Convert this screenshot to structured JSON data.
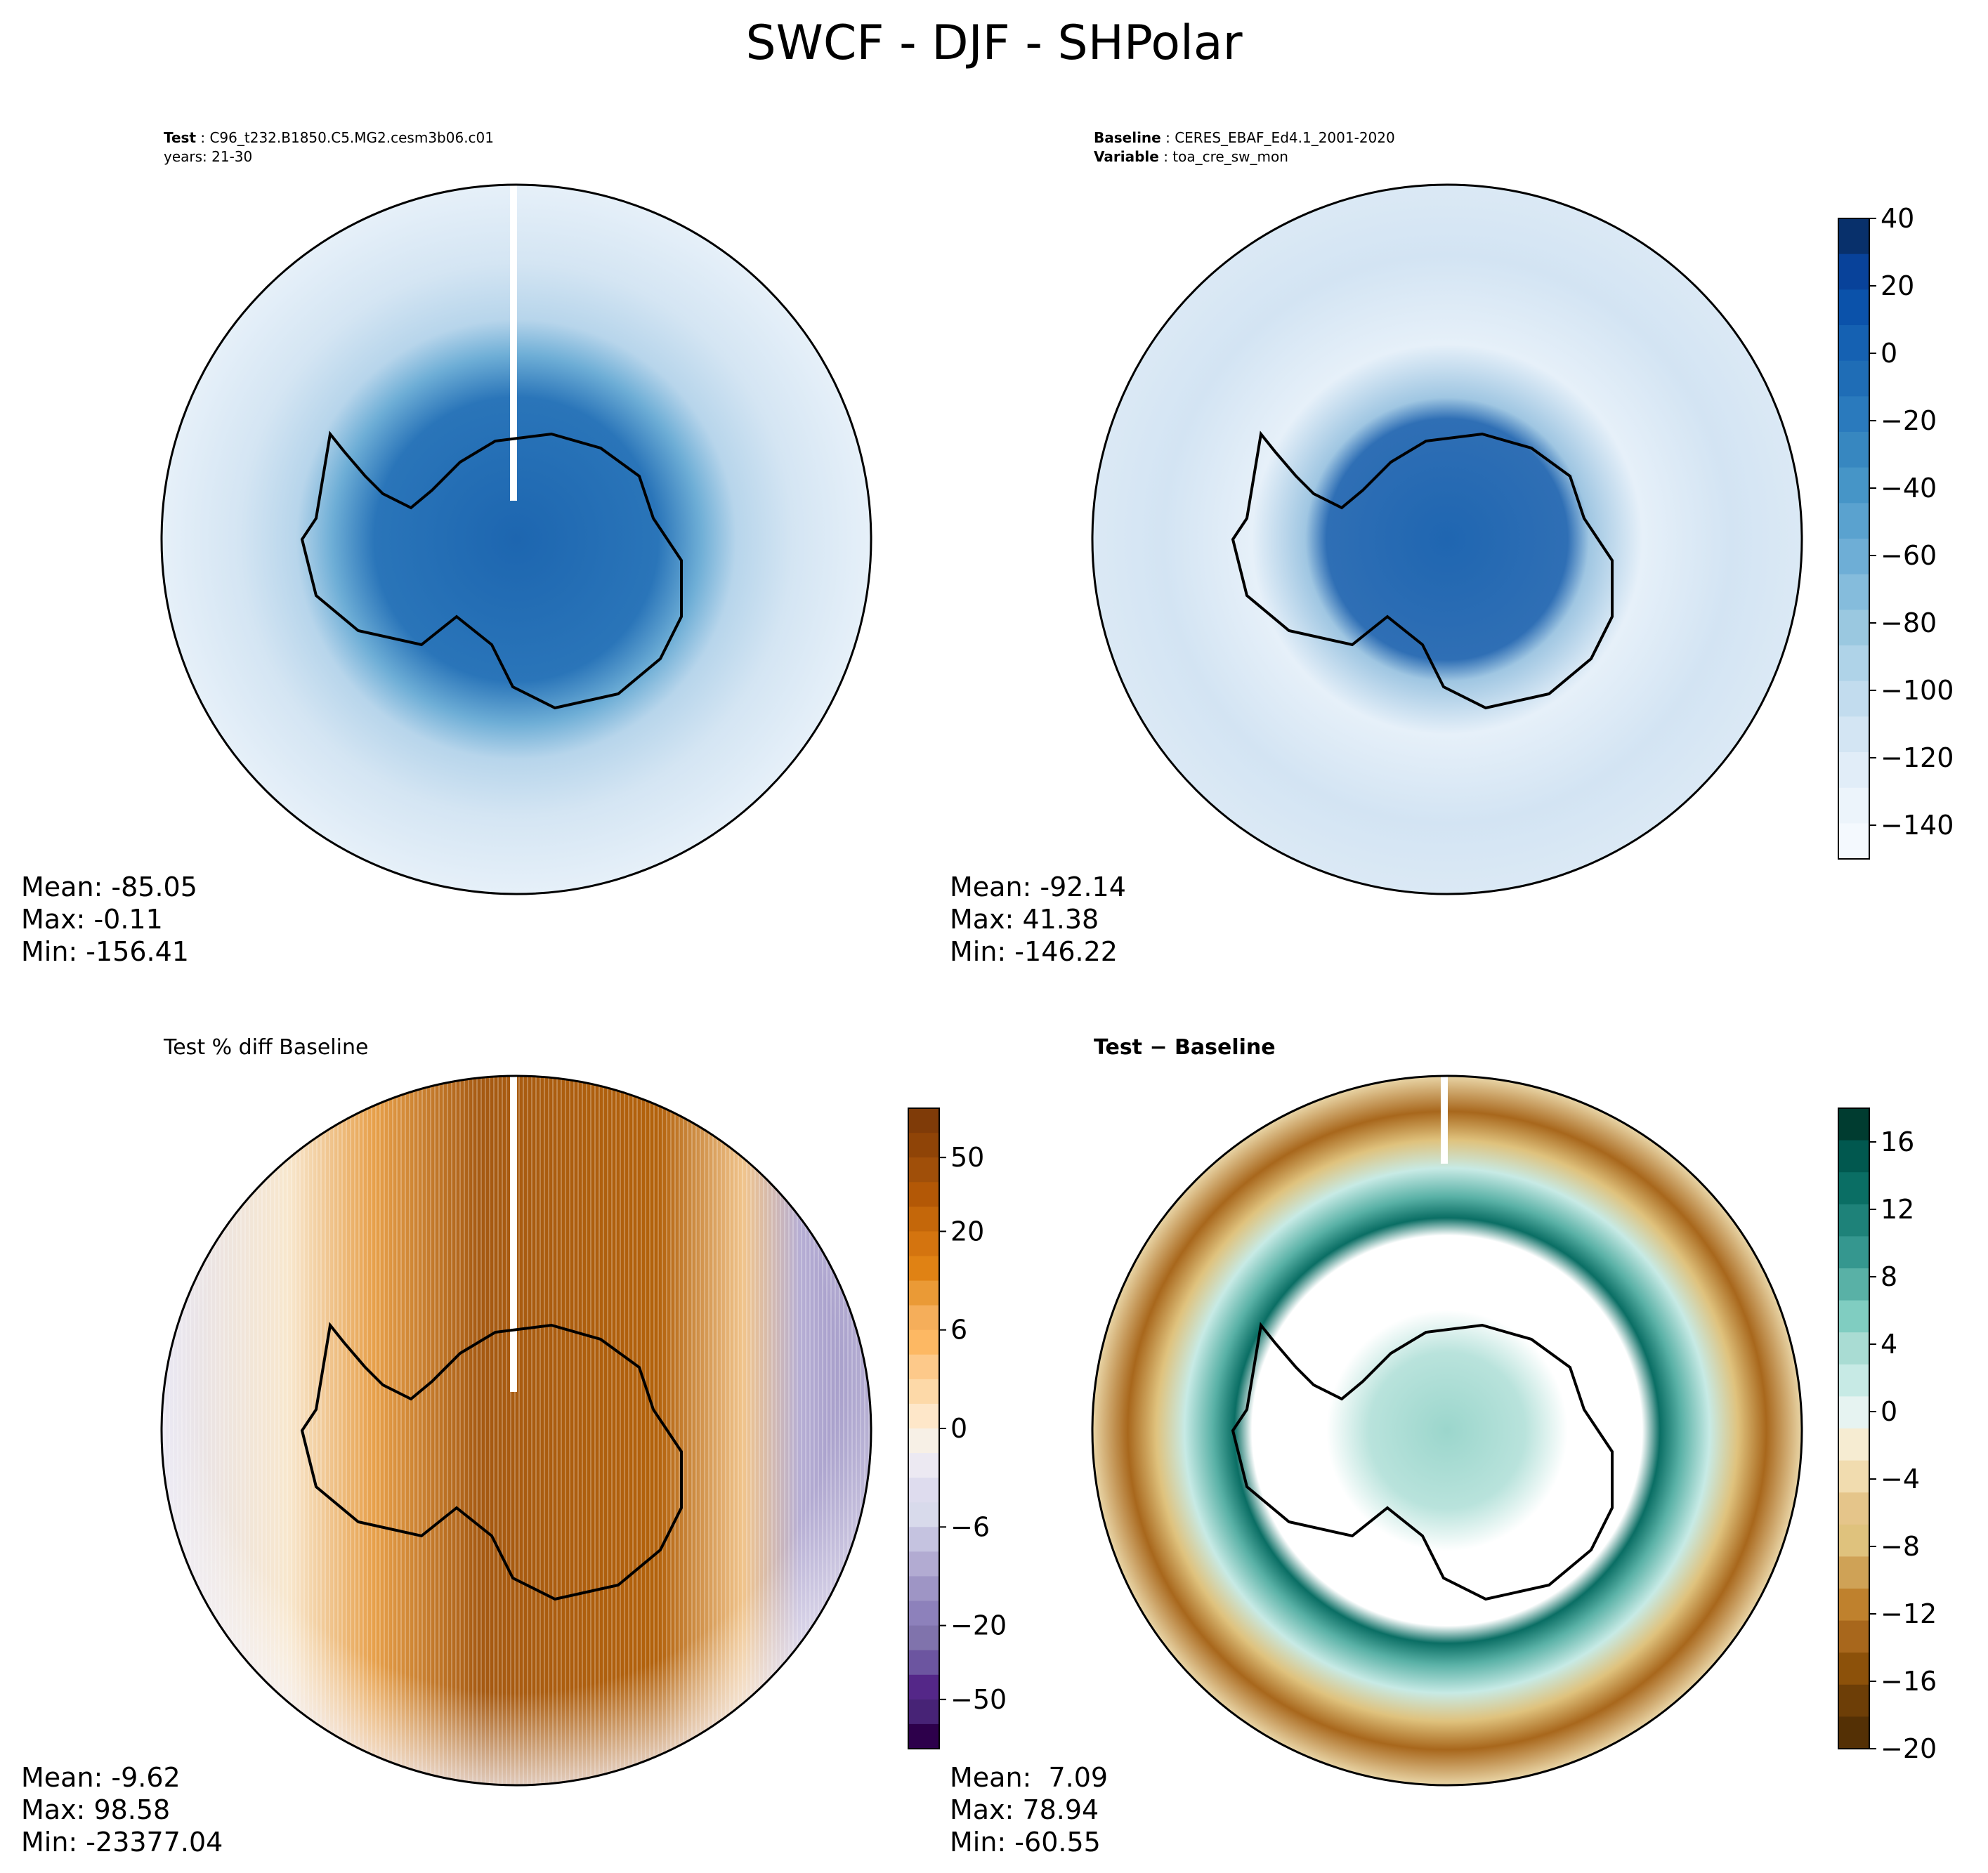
{
  "figure_title": "SWCF - DJF - SHPolar",
  "panels": [
    {
      "id": "test",
      "title_lines": [
        {
          "bold": "Test",
          "text": " : C96_t232.B1850.C5.MG2.cesm3b06.c01"
        },
        {
          "bold": "",
          "text": "years: 21-30"
        }
      ],
      "stats": {
        "mean": "Mean: -85.05",
        "max": "Max: -0.11",
        "min": "Min: -156.41"
      }
    },
    {
      "id": "baseline",
      "title_lines": [
        {
          "bold": "Baseline",
          "text": " : CERES_EBAF_Ed4.1_2001-2020"
        },
        {
          "bold": "Variable",
          "text": " : toa_cre_sw_mon"
        }
      ],
      "stats": {
        "mean": "Mean: -92.14",
        "max": "Max: 41.38",
        "min": "Min: -146.22"
      }
    },
    {
      "id": "pct_diff",
      "title": "Test % diff Baseline",
      "stats": {
        "mean": "Mean: -9.62",
        "max": "Max: 98.58",
        "min": "Min: -23377.04"
      }
    },
    {
      "id": "diff",
      "title_bold": "Test − Baseline",
      "stats": {
        "mean": "Mean:  7.09",
        "max": "Max: 78.94",
        "min": "Min: -60.55"
      }
    }
  ],
  "chart_data": [
    {
      "type": "heatmap",
      "projection": "south-polar-stereographic",
      "panel": "test",
      "colormap": "Blues_r",
      "colorbar": "shared-with-baseline"
    },
    {
      "type": "heatmap",
      "projection": "south-polar-stereographic",
      "panel": "baseline",
      "colormap": "Blues_r",
      "colorbar": {
        "range": [
          -150,
          40
        ],
        "ticks": [
          40,
          20,
          0,
          -20,
          -40,
          -60,
          -80,
          -100,
          -120,
          -140
        ],
        "tick_labels": [
          "40",
          "20",
          "0",
          "−20",
          "−40",
          "−60",
          "−80",
          "−100",
          "−120",
          "−140"
        ],
        "colors_top_to_bottom": [
          "#08306b",
          "#08429a",
          "#0b52aa",
          "#1561b2",
          "#1f6db6",
          "#2a7abd",
          "#3787c0",
          "#4695c7",
          "#5aa2cf",
          "#6eaed6",
          "#85bcdc",
          "#9ac8e0",
          "#afd3e8",
          "#c2dcee",
          "#d3e5f3",
          "#e1edf8",
          "#ecf4fb",
          "#f4f9fe"
        ]
      }
    },
    {
      "type": "heatmap",
      "projection": "south-polar-stereographic",
      "panel": "pct_diff",
      "colormap": "PuOr_r",
      "colorbar": {
        "levels": [
          -100,
          -75,
          -50,
          -40,
          -30,
          -20,
          -15,
          -10,
          -8,
          -6,
          -4,
          -2,
          -1,
          0,
          1,
          2,
          4,
          6,
          8,
          10,
          15,
          20,
          30,
          40,
          50,
          75,
          100
        ],
        "tick_values": [
          50,
          20,
          6,
          0,
          -6,
          -20,
          -50
        ],
        "tick_labels": [
          "50",
          "20",
          "6",
          "0",
          "−6",
          "−20",
          "−50"
        ],
        "colors_top_to_bottom": [
          "#7f3b08",
          "#8f4407",
          "#a04f09",
          "#b35806",
          "#c4670a",
          "#d4740f",
          "#e08214",
          "#ea9a36",
          "#f5ae5a",
          "#fdb863",
          "#fdc98a",
          "#fdd9a8",
          "#fee7c9",
          "#f7f0e6",
          "#ece9f2",
          "#dedcee",
          "#d8daeb",
          "#c5c3e0",
          "#b2abd2",
          "#9e95c5",
          "#8d81bb",
          "#8073ac",
          "#6c55a0",
          "#542788",
          "#472376",
          "#2d004b"
        ]
      }
    },
    {
      "type": "heatmap",
      "projection": "south-polar-stereographic",
      "panel": "diff",
      "colormap": "BrBG",
      "colorbar": {
        "range": [
          -20,
          18
        ],
        "tick_values": [
          16,
          12,
          8,
          4,
          0,
          -4,
          -8,
          -12,
          -16,
          -20
        ],
        "tick_labels": [
          "16",
          "12",
          "8",
          "4",
          "0",
          "−4",
          "−8",
          "−12",
          "−16",
          "−20"
        ],
        "colors_top_to_bottom": [
          "#003c30",
          "#01584f",
          "#0a6e64",
          "#1e8279",
          "#35978f",
          "#59b1a6",
          "#80cdc1",
          "#a9dcd3",
          "#c7eae5",
          "#e6f3f1",
          "#f6ecd2",
          "#f1dcaf",
          "#e5c58a",
          "#dfc27d",
          "#cfa256",
          "#bf812d",
          "#a8671c",
          "#8c510a",
          "#6d3e07",
          "#543005"
        ]
      }
    }
  ]
}
